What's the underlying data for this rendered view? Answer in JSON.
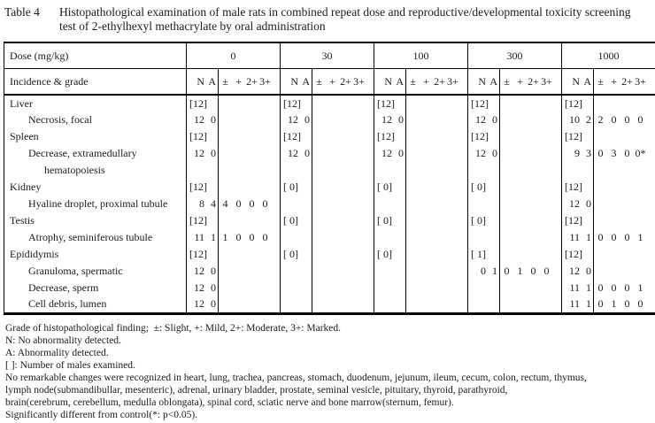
{
  "title": {
    "label": "Table 4",
    "caption": "Histopathological examination of male rats in combined repeat dose and reproductive/developmental toxicity screening test of 2-ethylhexyl methacrylate by oral administration"
  },
  "table": {
    "dose_header_label": "Dose (mg/kg)",
    "incidence_header_label": "Incidence & grade",
    "doses": [
      "0",
      "30",
      "100",
      "300",
      "1000"
    ],
    "na_labels": [
      "N",
      "A"
    ],
    "grade_labels": [
      "±",
      "+",
      "2+",
      "3+"
    ],
    "rows": [
      {
        "label": "Liver",
        "indent": 0,
        "cells": [
          {
            "na": "[12]"
          },
          {
            "na": "[12]"
          },
          {
            "na": "[12]"
          },
          {
            "na": "[12]"
          },
          {
            "na": "[12]"
          }
        ]
      },
      {
        "label": "Necrosis, focal",
        "indent": 1,
        "cells": [
          {
            "n": "12",
            "a": "0"
          },
          {
            "n": "12",
            "a": "0"
          },
          {
            "n": "12",
            "a": "0"
          },
          {
            "n": "12",
            "a": "0"
          },
          {
            "n": "10",
            "a": "2",
            "g": [
              "2",
              "0",
              "0",
              "0"
            ]
          }
        ]
      },
      {
        "label": "Spleen",
        "indent": 0,
        "cells": [
          {
            "na": "[12]"
          },
          {
            "na": "[12]"
          },
          {
            "na": "[12]"
          },
          {
            "na": "[12]"
          },
          {
            "na": "[12]"
          }
        ]
      },
      {
        "label": "Decrease, extramedullary",
        "indent": 1,
        "cells": [
          {
            "n": "12",
            "a": "0"
          },
          {
            "n": "12",
            "a": "0"
          },
          {
            "n": "12",
            "a": "0"
          },
          {
            "n": "12",
            "a": "0"
          },
          {
            "n": "9",
            "a": "3",
            "g": [
              "0",
              "3",
              "0",
              "0*"
            ]
          }
        ]
      },
      {
        "label": "hematopoiesis",
        "indent": 2,
        "cells": [
          {},
          {},
          {},
          {},
          {}
        ]
      },
      {
        "label": "Kidney",
        "indent": 0,
        "cells": [
          {
            "na": "[12]"
          },
          {
            "na": "[ 0]"
          },
          {
            "na": "[ 0]"
          },
          {
            "na": "[ 0]"
          },
          {
            "na": "[12]"
          }
        ]
      },
      {
        "label": "Hyaline droplet, proximal tubule",
        "indent": 1,
        "cells": [
          {
            "n": "8",
            "a": "4",
            "g": [
              "4",
              "0",
              "0",
              "0"
            ]
          },
          {},
          {},
          {},
          {
            "n": "12",
            "a": "0"
          }
        ]
      },
      {
        "label": "Testis",
        "indent": 0,
        "cells": [
          {
            "na": "[12]"
          },
          {
            "na": "[ 0]"
          },
          {
            "na": "[ 0]"
          },
          {
            "na": "[ 0]"
          },
          {
            "na": "[12]"
          }
        ]
      },
      {
        "label": "Atrophy, seminiferous tubule",
        "indent": 1,
        "cells": [
          {
            "n": "11",
            "a": "1",
            "g": [
              "1",
              "0",
              "0",
              "0"
            ]
          },
          {},
          {},
          {},
          {
            "n": "11",
            "a": "1",
            "g": [
              "0",
              "0",
              "0",
              "1"
            ]
          }
        ]
      },
      {
        "label": "Epididymis",
        "indent": 0,
        "cells": [
          {
            "na": "[12]"
          },
          {
            "na": "[ 0]"
          },
          {
            "na": "[ 0]"
          },
          {
            "na": "[ 1]"
          },
          {
            "na": "[12]"
          }
        ]
      },
      {
        "label": "Granuloma, spermatic",
        "indent": 1,
        "cells": [
          {
            "n": "12",
            "a": "0"
          },
          {},
          {},
          {
            "n": "0",
            "a": "1",
            "g": [
              "0",
              "1",
              "0",
              "0"
            ]
          },
          {
            "n": "12",
            "a": "0"
          }
        ]
      },
      {
        "label": "Decrease, sperm",
        "indent": 1,
        "cells": [
          {
            "n": "12",
            "a": "0"
          },
          {},
          {},
          {},
          {
            "n": "11",
            "a": "1",
            "g": [
              "0",
              "0",
              "0",
              "1"
            ]
          }
        ]
      },
      {
        "label": "Cell debris, lumen",
        "indent": 1,
        "cells": [
          {
            "n": "12",
            "a": "0"
          },
          {},
          {},
          {},
          {
            "n": "11",
            "a": "1",
            "g": [
              "0",
              "1",
              "0",
              "0"
            ]
          }
        ]
      }
    ]
  },
  "footnotes": [
    "Grade of histopathological finding;  ±: Slight, +: Mild, 2+: Moderate, 3+: Marked.",
    "N: No abnormality detected.",
    "A: Abnormality detected.",
    "[ ]: Number of males examined.",
    "No remarkable changes were recognized in heart, lung, trachea, pancreas, stomach, duodenum, jejunum, ileum, cecum, colon, rectum, thymus,",
    "lymph node(submandibullar, mesenteric), adrenal, urinary bladder, prostate, seminal vesicle, pituitary, thyroid, parathyroid,",
    "brain(cerebrum, cerebellum, medulla oblongata), spinal cord, sciatic nerve and bone marrow(sternum, femur).",
    "Significantly different from control(*: p<0.05)."
  ],
  "colors": {
    "text": "#1a1a1a",
    "border": "#000000",
    "background": "#ffffff"
  }
}
